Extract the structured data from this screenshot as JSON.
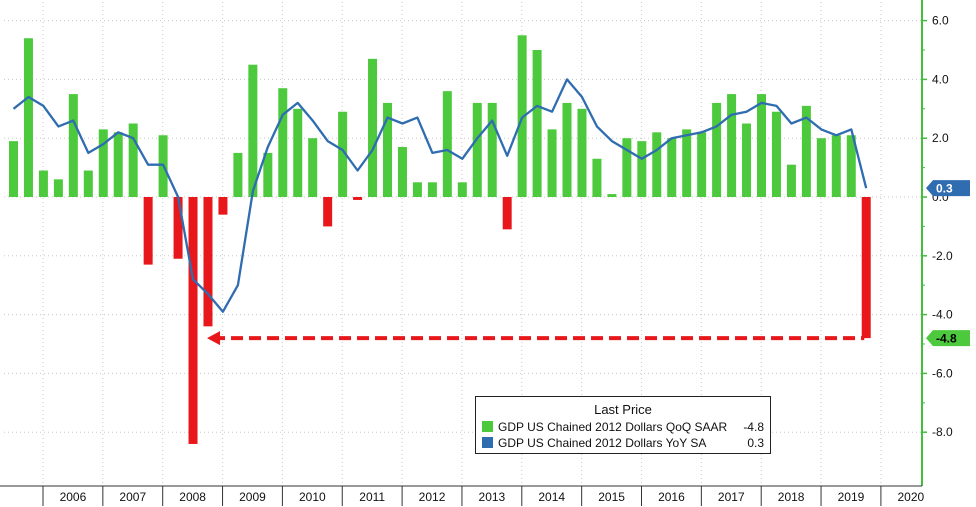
{
  "chart_data": {
    "type": "bar+line",
    "title": "",
    "xlabel": "",
    "ylabel": "",
    "ylim": [
      -9.6,
      6.6
    ],
    "y_ticks": [
      "6.0",
      "4.0",
      "2.0",
      "0.0",
      "-2.0",
      "-4.0",
      "-6.0",
      "-8.0"
    ],
    "y_tick_values": [
      6,
      4,
      2,
      0,
      -2,
      -4,
      -6,
      -8
    ],
    "x_labels": [
      "2006",
      "2007",
      "2008",
      "2009",
      "2010",
      "2011",
      "2012",
      "2013",
      "2014",
      "2015",
      "2016",
      "2017",
      "2018",
      "2019",
      "2020"
    ],
    "quarters": [
      "2005Q4",
      "2006Q1",
      "2006Q2",
      "2006Q3",
      "2006Q4",
      "2007Q1",
      "2007Q2",
      "2007Q3",
      "2007Q4",
      "2008Q1",
      "2008Q2",
      "2008Q3",
      "2008Q4",
      "2009Q1",
      "2009Q2",
      "2009Q3",
      "2009Q4",
      "2010Q1",
      "2010Q2",
      "2010Q3",
      "2010Q4",
      "2011Q1",
      "2011Q2",
      "2011Q3",
      "2011Q4",
      "2012Q1",
      "2012Q2",
      "2012Q3",
      "2012Q4",
      "2013Q1",
      "2013Q2",
      "2013Q3",
      "2013Q4",
      "2014Q1",
      "2014Q2",
      "2014Q3",
      "2014Q4",
      "2015Q1",
      "2015Q2",
      "2015Q3",
      "2015Q4",
      "2016Q1",
      "2016Q2",
      "2016Q3",
      "2016Q4",
      "2017Q1",
      "2017Q2",
      "2017Q3",
      "2017Q4",
      "2018Q1",
      "2018Q2",
      "2018Q3",
      "2018Q4",
      "2019Q1",
      "2019Q2",
      "2019Q3",
      "2019Q4",
      "2020Q1"
    ],
    "series": [
      {
        "name": "GDP US Chained 2012 Dollars QoQ SAAR",
        "kind": "bar",
        "color_pos": "#4cc93c",
        "color_neg": "#e8171b",
        "last": "-4.8",
        "values": [
          1.9,
          5.4,
          0.9,
          0.6,
          3.5,
          0.9,
          2.3,
          2.2,
          2.5,
          -2.3,
          2.1,
          -2.1,
          -8.4,
          -4.4,
          -0.6,
          1.5,
          4.5,
          1.5,
          3.7,
          3.0,
          2.0,
          -1.0,
          2.9,
          -0.1,
          4.7,
          3.2,
          1.7,
          0.5,
          0.5,
          3.6,
          0.5,
          3.2,
          3.2,
          -1.1,
          5.5,
          5.0,
          2.3,
          3.2,
          3.0,
          1.3,
          0.1,
          2.0,
          1.9,
          2.2,
          2.0,
          2.3,
          2.2,
          3.2,
          3.5,
          2.5,
          3.5,
          2.9,
          1.1,
          3.1,
          2.0,
          2.1,
          2.1,
          -4.8
        ]
      },
      {
        "name": "GDP US Chained 2012 Dollars YoY SA",
        "kind": "line",
        "color": "#2f6cb0",
        "last": "0.3",
        "values": [
          3.0,
          3.4,
          3.1,
          2.4,
          2.6,
          1.5,
          1.8,
          2.2,
          2.0,
          1.1,
          1.1,
          0.0,
          -2.8,
          -3.3,
          -3.9,
          -3.0,
          0.2,
          1.7,
          2.8,
          3.2,
          2.6,
          1.9,
          1.6,
          0.9,
          1.6,
          2.7,
          2.5,
          2.7,
          1.5,
          1.6,
          1.3,
          2.0,
          2.6,
          1.4,
          2.7,
          3.1,
          2.9,
          4.0,
          3.4,
          2.4,
          1.9,
          1.6,
          1.3,
          1.6,
          2.0,
          2.1,
          2.2,
          2.4,
          2.8,
          2.9,
          3.2,
          3.1,
          2.5,
          2.7,
          2.3,
          2.1,
          2.3,
          0.3
        ]
      }
    ],
    "annotation_line": {
      "value": -4.8,
      "style": "dashed",
      "color": "#e8171b",
      "from": "2008Q4",
      "to": "2020Q1"
    },
    "legend": {
      "title": "Last Price",
      "items": [
        {
          "label": "GDP US Chained 2012 Dollars QoQ SAAR",
          "value": "-4.8",
          "color": "#4cc93c"
        },
        {
          "label": "GDP US Chained 2012 Dollars YoY SA",
          "value": "0.3",
          "color": "#2f6cb0"
        }
      ]
    },
    "last_value_labels": [
      {
        "text": "0.3",
        "bg": "#2f6cb0",
        "fg": "#ffffff",
        "value": 0.3
      },
      {
        "text": "-4.8",
        "bg": "#4cc93c",
        "fg": "#000000",
        "value": -4.8
      }
    ],
    "grid": true,
    "axis_color": "#3fbf3a"
  }
}
